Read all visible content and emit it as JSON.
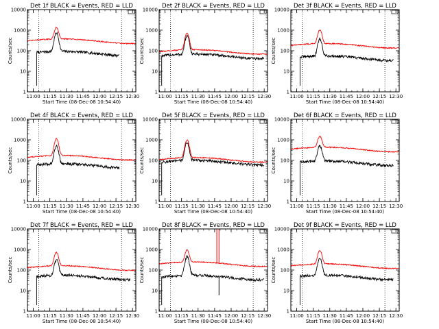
{
  "figure": {
    "background": "#ffffff",
    "series_colors": {
      "BLACK": "#000000",
      "RED": "#ff0000"
    }
  },
  "chart_data": [
    {
      "type": "line",
      "title": "Det 1f BLACK = Events, RED = LLD",
      "xlabel": "Start Time (08-Dec-08 10:54:40)",
      "ylabel": "Counts/sec",
      "yscale": "log",
      "ylim": [
        1,
        10000
      ],
      "xlim": [
        "10:54:40",
        "12:33:00"
      ],
      "xtick_labels": [
        "11:00",
        "11:15",
        "11:30",
        "11:45",
        "12:00",
        "12:15",
        "12:30"
      ],
      "ytick_labels": [
        "1",
        "10",
        "100",
        "1000",
        "10000"
      ],
      "vlines": [
        "11:05",
        "12:20"
      ],
      "peak": {
        "time": "11:21",
        "lld": 1300,
        "events": 700
      },
      "series": [
        {
          "name": "BLACK",
          "baseline": 75,
          "start": "11:03",
          "end": "12:18"
        },
        {
          "name": "RED",
          "baseline": 300,
          "start": "10:54:40",
          "end": "12:33"
        }
      ]
    },
    {
      "type": "line",
      "title": "Det 2f BLACK = Events, RED = LLD",
      "xlabel": "Start Time (08-Dec-08 10:54:40)",
      "ylabel": "Counts/sec",
      "yscale": "log",
      "ylim": [
        1,
        10000
      ],
      "xlim": [
        "10:54:40",
        "12:33:00"
      ],
      "xtick_labels": [
        "11:00",
        "11:15",
        "11:30",
        "11:45",
        "12:00",
        "12:15",
        "12:30"
      ],
      "ytick_labels": [
        "1",
        "10",
        "100",
        "1000",
        "10000"
      ],
      "vlines": [
        "11:05",
        "12:20"
      ],
      "peak": {
        "time": "11:20",
        "lld": 700,
        "events": 500
      },
      "series": [
        {
          "name": "BLACK",
          "baseline": 55,
          "start": "10:57",
          "end": "12:30"
        },
        {
          "name": "RED",
          "baseline": 90,
          "start": "10:54:40",
          "end": "12:33"
        }
      ]
    },
    {
      "type": "line",
      "title": "Det 3f BLACK = Events, RED = LLD",
      "xlabel": "Start Time (08-Dec-08 10:54:40)",
      "ylabel": "Counts/sec",
      "yscale": "log",
      "ylim": [
        1,
        10000
      ],
      "xlim": [
        "10:54:40",
        "12:33:00"
      ],
      "xtick_labels": [
        "11:00",
        "11:15",
        "11:30",
        "11:45",
        "12:00",
        "12:15",
        "12:30"
      ],
      "ytick_labels": [
        "1",
        "10",
        "100",
        "1000",
        "10000"
      ],
      "vlines": [
        "11:05",
        "12:20"
      ],
      "peak": {
        "time": "11:21",
        "lld": 1000,
        "events": 350
      },
      "series": [
        {
          "name": "BLACK",
          "baseline": 45,
          "start": "11:03",
          "end": "12:28"
        },
        {
          "name": "RED",
          "baseline": 180,
          "start": "10:54:40",
          "end": "12:33"
        }
      ]
    },
    {
      "type": "line",
      "title": "Det 4f BLACK = Events, RED = LLD",
      "xlabel": "Start Time (08-Dec-08 10:54:40)",
      "ylabel": "Counts/sec",
      "yscale": "log",
      "ylim": [
        1,
        10000
      ],
      "xlim": [
        "10:54:40",
        "12:33:00"
      ],
      "xtick_labels": [
        "11:00",
        "11:15",
        "11:30",
        "11:45",
        "12:00",
        "12:15",
        "12:30"
      ],
      "ytick_labels": [
        "1",
        "10",
        "100",
        "1000",
        "10000"
      ],
      "vlines": [
        "11:05",
        "12:20"
      ],
      "peak": {
        "time": "11:21",
        "lld": 1100,
        "events": 500
      },
      "series": [
        {
          "name": "BLACK",
          "baseline": 55,
          "start": "11:03",
          "end": "12:18"
        },
        {
          "name": "RED",
          "baseline": 140,
          "start": "10:54:40",
          "end": "12:33"
        }
      ]
    },
    {
      "type": "line",
      "title": "Det 5f BLACK = Events, RED = LLD",
      "xlabel": "Start Time (08-Dec-08 10:54:40)",
      "ylabel": "Counts/sec",
      "yscale": "log",
      "ylim": [
        1,
        10000
      ],
      "xlim": [
        "10:54:40",
        "12:33:00"
      ],
      "xtick_labels": [
        "11:00",
        "11:15",
        "11:30",
        "11:45",
        "12:00",
        "12:15",
        "12:30"
      ],
      "ytick_labels": [
        "1",
        "10",
        "100",
        "1000",
        "10000"
      ],
      "vlines": [
        "11:05",
        "12:20"
      ],
      "peak": {
        "time": "11:20",
        "lld": 950,
        "events": 700
      },
      "series": [
        {
          "name": "BLACK",
          "baseline": 80,
          "start": "10:57",
          "end": "12:30"
        },
        {
          "name": "RED",
          "baseline": 110,
          "start": "10:54:40",
          "end": "12:33"
        }
      ]
    },
    {
      "type": "line",
      "title": "Det 6f BLACK = Events, RED = LLD",
      "xlabel": "Start Time (08-Dec-08 10:54:40)",
      "ylabel": "Counts/sec",
      "yscale": "log",
      "ylim": [
        1,
        10000
      ],
      "xlim": [
        "10:54:40",
        "12:33:00"
      ],
      "xtick_labels": [
        "11:00",
        "11:15",
        "11:30",
        "11:45",
        "12:00",
        "12:15",
        "12:30"
      ],
      "ytick_labels": [
        "1",
        "10",
        "100",
        "1000",
        "10000"
      ],
      "vlines": [
        "11:05",
        "12:20"
      ],
      "peak": {
        "time": "11:21",
        "lld": 1400,
        "events": 500
      },
      "series": [
        {
          "name": "BLACK",
          "baseline": 75,
          "start": "11:03",
          "end": "12:28"
        },
        {
          "name": "RED",
          "baseline": 350,
          "start": "10:54:40",
          "end": "12:33"
        }
      ]
    },
    {
      "type": "line",
      "title": "Det 7f BLACK = Events, RED = LLD",
      "xlabel": "Start Time (08-Dec-08 10:54:40)",
      "ylabel": "Counts/sec",
      "yscale": "log",
      "ylim": [
        1,
        10000
      ],
      "xlim": [
        "10:54:40",
        "12:33:00"
      ],
      "xtick_labels": [
        "11:00",
        "11:15",
        "11:30",
        "11:45",
        "12:00",
        "12:15",
        "12:30"
      ],
      "ytick_labels": [
        "1",
        "10",
        "100",
        "1000",
        "10000"
      ],
      "vlines": [
        "11:05",
        "12:20"
      ],
      "peak": {
        "time": "11:21",
        "lld": 700,
        "events": 300
      },
      "series": [
        {
          "name": "BLACK",
          "baseline": 45,
          "start": "11:03",
          "end": "12:28"
        },
        {
          "name": "RED",
          "baseline": 130,
          "start": "10:54:40",
          "end": "12:33"
        }
      ]
    },
    {
      "type": "line",
      "title": "Det 8f BLACK = Events, RED = LLD",
      "xlabel": "Start Time (08-Dec-08 10:54:40)",
      "ylabel": "Counts/sec",
      "yscale": "log",
      "ylim": [
        1,
        10000
      ],
      "xlim": [
        "10:54:40",
        "12:33:00"
      ],
      "xtick_labels": [
        "11:00",
        "11:15",
        "11:30",
        "11:45",
        "12:00",
        "12:15",
        "12:30"
      ],
      "ytick_labels": [
        "1",
        "10",
        "100",
        "1000",
        "10000"
      ],
      "vlines": [
        "11:05",
        "12:20"
      ],
      "peak": {
        "time": "11:20",
        "lld": 900,
        "events": 450
      },
      "spikes": [
        {
          "time": "11:47",
          "lld": 10000
        },
        {
          "time": "11:49",
          "lld": 10000,
          "events": 6
        }
      ],
      "series": [
        {
          "name": "BLACK",
          "baseline": 45,
          "start": "10:57",
          "end": "12:30"
        },
        {
          "name": "RED",
          "baseline": 200,
          "start": "10:54:40",
          "end": "12:33"
        }
      ]
    },
    {
      "type": "line",
      "title": "Det 9f BLACK = Events, RED = LLD",
      "xlabel": "Start Time (08-Dec-08 10:54:40)",
      "ylabel": "Counts/sec",
      "yscale": "log",
      "ylim": [
        1,
        10000
      ],
      "xlim": [
        "10:54:40",
        "12:33:00"
      ],
      "xtick_labels": [
        "11:00",
        "11:15",
        "11:30",
        "11:45",
        "12:00",
        "12:15",
        "12:30"
      ],
      "ytick_labels": [
        "1",
        "10",
        "100",
        "1000",
        "10000"
      ],
      "vlines": [
        "11:05",
        "12:20"
      ],
      "peak": {
        "time": "11:21",
        "lld": 850,
        "events": 350
      },
      "series": [
        {
          "name": "BLACK",
          "baseline": 45,
          "start": "11:03",
          "end": "12:28"
        },
        {
          "name": "RED",
          "baseline": 160,
          "start": "10:54:40",
          "end": "12:33"
        }
      ]
    }
  ]
}
